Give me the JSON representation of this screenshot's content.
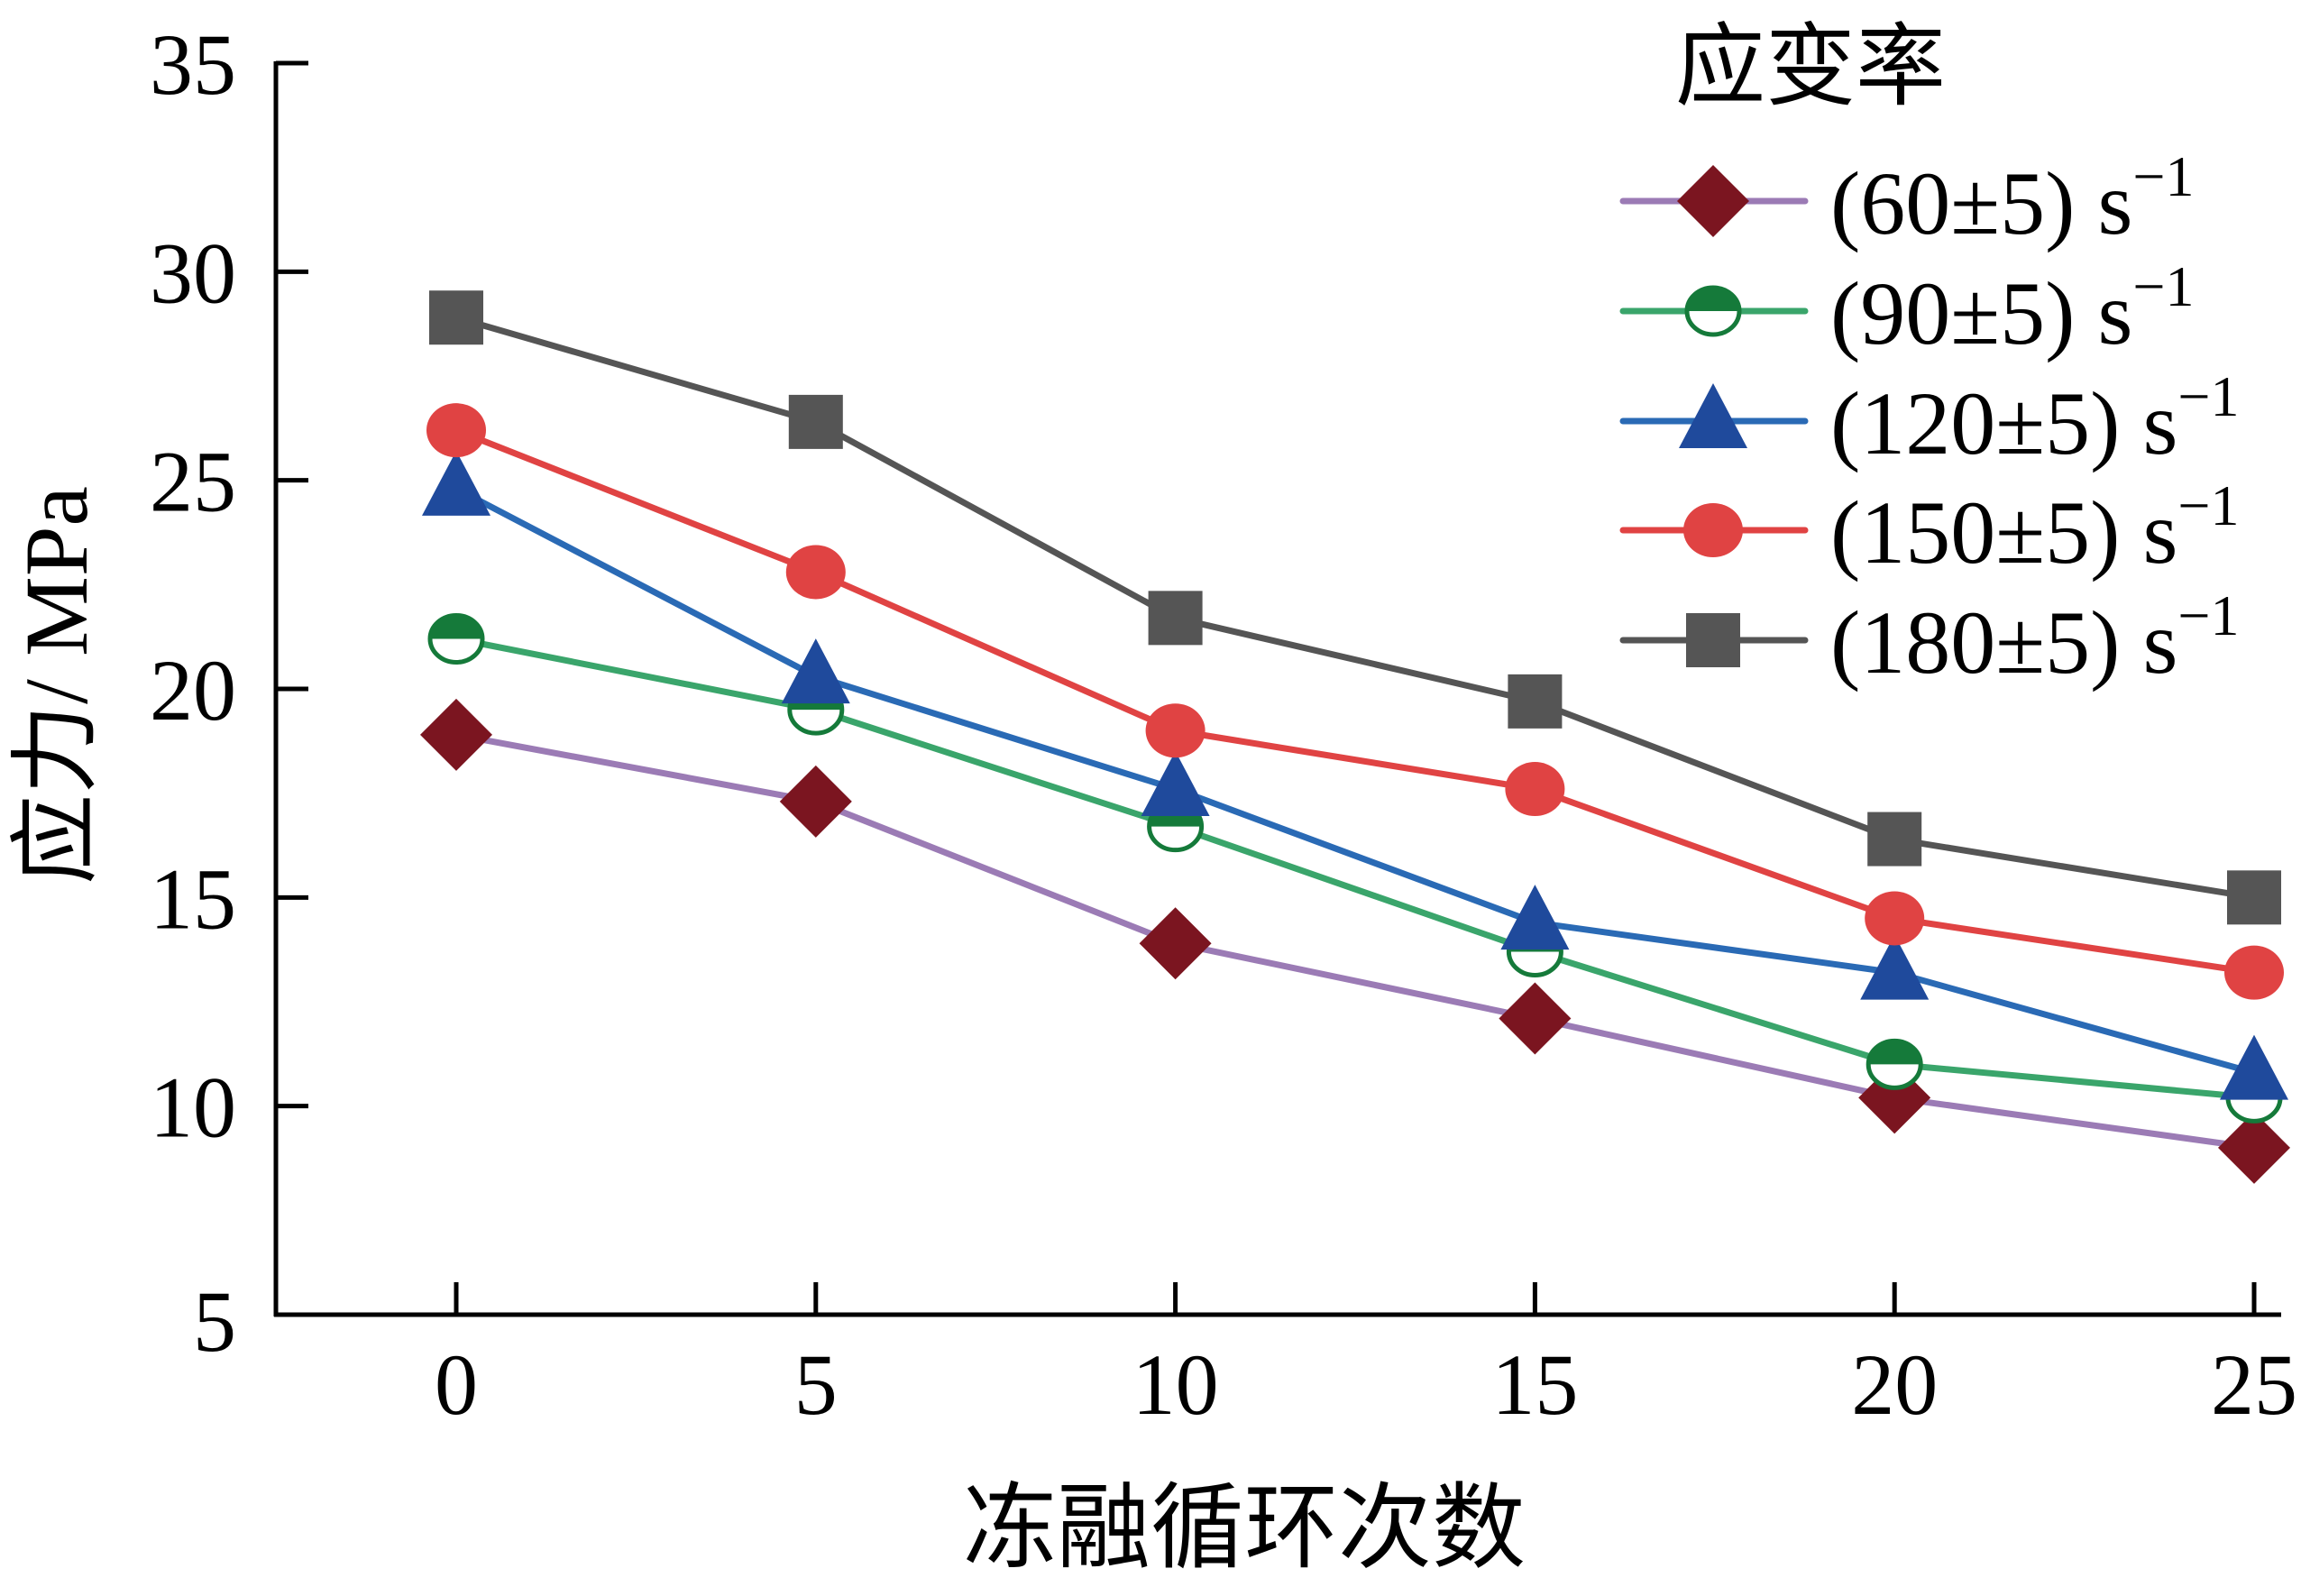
{
  "chart_data": {
    "type": "line",
    "title": "",
    "xlabel": "冻融循环次数",
    "ylabel": "应力/ MPa",
    "x": [
      0,
      5,
      10,
      15,
      20,
      25
    ],
    "xticks": [
      "0",
      "5",
      "10",
      "15",
      "20",
      "25"
    ],
    "yticks": [
      "5",
      "10",
      "15",
      "20",
      "25",
      "30",
      "35"
    ],
    "ytick_values": [
      5,
      10,
      15,
      20,
      25,
      30,
      35
    ],
    "xlim": [
      -2.5,
      25.5
    ],
    "ylim": [
      5,
      35
    ],
    "grid": false,
    "legend": {
      "title": "应变率",
      "placement": "top-right"
    },
    "series": [
      {
        "name": "(60±5) s",
        "sup": "−1",
        "marker": "diamond",
        "line_color": "#9b7bb5",
        "marker_color": "#7b1520",
        "values": [
          18.9,
          17.3,
          13.9,
          12.1,
          10.2,
          9.0
        ]
      },
      {
        "name": "(90±5) s",
        "sup": "−1",
        "marker": "half-circle",
        "line_color": "#3aa56b",
        "marker_color": "#157a3a",
        "values": [
          21.2,
          19.5,
          16.7,
          13.7,
          11.0,
          10.2
        ]
      },
      {
        "name": "(120±5) s",
        "sup": "−1",
        "marker": "triangle",
        "line_color": "#2a6ab5",
        "marker_color": "#1f4a9c",
        "values": [
          24.8,
          20.3,
          17.6,
          14.4,
          13.2,
          10.8
        ]
      },
      {
        "name": "(150±5) s",
        "sup": "−1",
        "marker": "circle",
        "line_color": "#e04343",
        "marker_color": "#e04343",
        "values": [
          26.2,
          22.8,
          19.0,
          17.6,
          14.5,
          13.2
        ]
      },
      {
        "name": "(180±5) s",
        "sup": "−1",
        "marker": "square",
        "line_color": "#555555",
        "marker_color": "#555555",
        "values": [
          28.9,
          26.4,
          21.7,
          19.7,
          16.4,
          15.0
        ]
      }
    ]
  }
}
